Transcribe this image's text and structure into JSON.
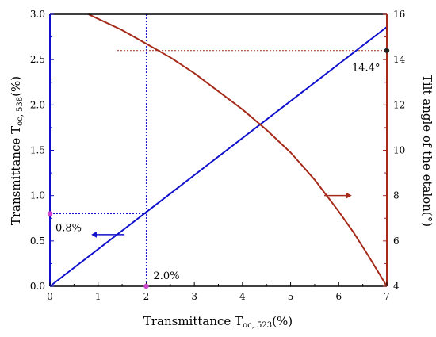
{
  "chart_data": {
    "type": "line",
    "xlabel": "Transmittance T",
    "xlabel_sub": "oc, 523",
    "xlabel_unit": "(%)",
    "ylabel_left": "Transmittance T",
    "ylabel_left_sub": "oc, 538",
    "ylabel_left_unit": "(%)",
    "ylabel_right": "Tilt angle of the etalon(°)",
    "xlim": [
      0,
      7
    ],
    "ylim_left": [
      0,
      3
    ],
    "ylim_right": [
      4,
      16
    ],
    "x_ticks": [
      "0",
      "1",
      "2",
      "3",
      "4",
      "5",
      "6",
      "7"
    ],
    "y_left_ticks": [
      "0.0",
      "0.5",
      "1.0",
      "1.5",
      "2.0",
      "2.5",
      "3.0"
    ],
    "y_right_ticks": [
      "4",
      "6",
      "8",
      "10",
      "12",
      "14",
      "16"
    ],
    "colors": {
      "left": "#1010cc",
      "right": "#a52a1a",
      "marker": "#cc44cc",
      "frame": "#000000"
    },
    "series": [
      {
        "axis": "left",
        "x": [
          0,
          7
        ],
        "y": [
          0,
          2.86
        ]
      },
      {
        "axis": "right",
        "x": [
          0.8,
          1.5,
          2.0,
          2.5,
          3.0,
          3.5,
          4.0,
          4.5,
          5.0,
          5.5,
          6.0,
          6.3,
          6.6,
          6.8,
          7.0
        ],
        "y": [
          16.0,
          15.3,
          14.7,
          14.1,
          13.4,
          12.6,
          11.8,
          10.9,
          9.9,
          8.7,
          7.3,
          6.4,
          5.4,
          4.7,
          4.0
        ]
      }
    ],
    "annotations": [
      {
        "text": "0.8%",
        "x": 0,
        "y": 0.8,
        "axis": "left"
      },
      {
        "text": "2.0%",
        "x": 2,
        "y": 0,
        "axis": "left"
      },
      {
        "text": "14.4°",
        "x": 7,
        "y": 14.4,
        "axis": "right"
      }
    ]
  }
}
